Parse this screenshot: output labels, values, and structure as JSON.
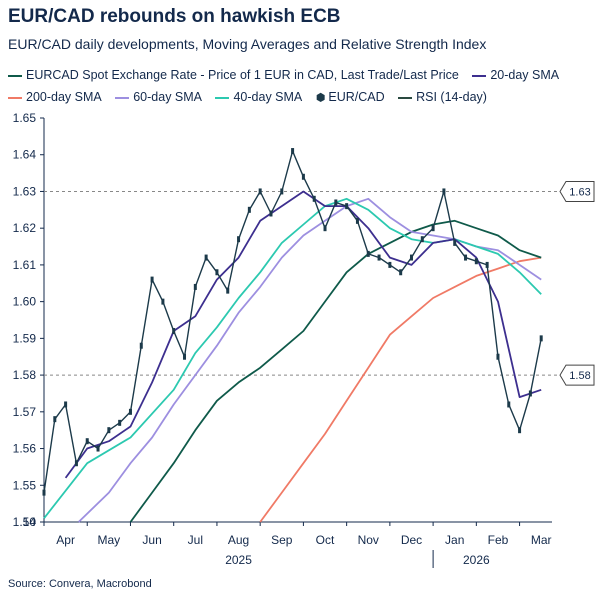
{
  "chart_data": {
    "type": "line",
    "title": "EUR/CAD rebounds on hawkish ECB",
    "subtitle": "EUR/CAD daily developments, Moving Averages and Relative Strength Index",
    "source": "Source: Convera, Macrobond",
    "ylim": [
      1.54,
      1.65
    ],
    "yticks": [
      "1.65",
      "1.64",
      "1.63",
      "1.62",
      "1.61",
      "1.60",
      "1.59",
      "1.58",
      "1.57",
      "1.56",
      "1.55",
      "1.54"
    ],
    "rsi_tick": "10",
    "months": [
      "Apr",
      "May",
      "Jun",
      "Jul",
      "Aug",
      "Sep",
      "Oct",
      "Nov",
      "Dec",
      "Jan",
      "Feb",
      "Mar"
    ],
    "years": [
      "2025",
      "2026"
    ],
    "reference_lines": [
      {
        "value": 1.63,
        "label": "1.63"
      },
      {
        "value": 1.58,
        "label": "1.58"
      }
    ],
    "legend": [
      {
        "name": "EURCAD Spot Exchange Rate - Price of 1 EUR in CAD, Last Trade/Last Price",
        "color": "#0f5a4a",
        "kind": "line"
      },
      {
        "name": "20-day SMA",
        "color": "#3d2f8f",
        "kind": "line"
      },
      {
        "name": "200-day SMA",
        "color": "#f07a66",
        "kind": "line"
      },
      {
        "name": "60-day SMA",
        "color": "#9d8fe0",
        "kind": "line"
      },
      {
        "name": "40-day SMA",
        "color": "#2cc9b0",
        "kind": "line"
      },
      {
        "name": "EUR/CAD",
        "color": "#1c3a4a",
        "kind": "candle"
      },
      {
        "name": "RSI (14-day)",
        "color": "#2a4a40",
        "kind": "line"
      }
    ],
    "series": [
      {
        "name": "EUR/CAD",
        "color": "#1c3a4a",
        "x": [
          0,
          0.25,
          0.5,
          0.75,
          1,
          1.25,
          1.5,
          1.75,
          2,
          2.25,
          2.5,
          2.75,
          3,
          3.25,
          3.5,
          3.75,
          4,
          4.25,
          4.5,
          4.75,
          5,
          5.25,
          5.5,
          5.75,
          6,
          6.25,
          6.5,
          6.75,
          7,
          7.25,
          7.5,
          7.75,
          8,
          8.25,
          8.5,
          8.75,
          9,
          9.25,
          9.5,
          9.75,
          10,
          10.25,
          10.5,
          10.75,
          11,
          11.25,
          11.5
        ],
        "values": [
          1.548,
          1.568,
          1.572,
          1.556,
          1.562,
          1.56,
          1.565,
          1.567,
          1.57,
          1.588,
          1.606,
          1.6,
          1.592,
          1.585,
          1.604,
          1.612,
          1.608,
          1.603,
          1.617,
          1.625,
          1.63,
          1.624,
          1.63,
          1.641,
          1.634,
          1.628,
          1.62,
          1.627,
          1.626,
          1.622,
          1.613,
          1.612,
          1.61,
          1.608,
          1.612,
          1.617,
          1.62,
          1.63,
          1.616,
          1.612,
          1.611,
          1.61,
          1.585,
          1.572,
          1.565,
          1.575,
          1.59
        ]
      },
      {
        "name": "20-day SMA",
        "color": "#3d2f8f",
        "x": [
          0.5,
          1,
          1.5,
          2,
          2.5,
          3,
          3.5,
          4,
          4.5,
          5,
          5.5,
          6,
          6.5,
          7,
          7.5,
          8,
          8.5,
          9,
          9.5,
          10,
          10.5,
          11,
          11.5
        ],
        "values": [
          1.552,
          1.56,
          1.562,
          1.566,
          1.578,
          1.592,
          1.596,
          1.606,
          1.612,
          1.622,
          1.626,
          1.63,
          1.626,
          1.626,
          1.62,
          1.612,
          1.61,
          1.616,
          1.617,
          1.612,
          1.6,
          1.574,
          1.576
        ]
      },
      {
        "name": "40-day SMA",
        "color": "#2cc9b0",
        "x": [
          0,
          1,
          2,
          3,
          3.5,
          4,
          4.5,
          5,
          5.5,
          6,
          6.5,
          7,
          7.5,
          8,
          8.5,
          9,
          9.5,
          10,
          10.5,
          11,
          11.5
        ],
        "values": [
          1.541,
          1.556,
          1.563,
          1.576,
          1.586,
          1.593,
          1.601,
          1.608,
          1.616,
          1.621,
          1.626,
          1.628,
          1.625,
          1.62,
          1.617,
          1.616,
          1.617,
          1.615,
          1.613,
          1.608,
          1.602
        ]
      },
      {
        "name": "60-day SMA",
        "color": "#9d8fe0",
        "x": [
          0.8,
          1.5,
          2,
          2.5,
          3,
          3.5,
          4,
          4.5,
          5,
          5.5,
          6,
          6.5,
          7,
          7.5,
          8,
          8.5,
          9,
          9.5,
          10,
          10.5,
          11,
          11.5
        ],
        "values": [
          1.54,
          1.548,
          1.556,
          1.563,
          1.572,
          1.58,
          1.588,
          1.597,
          1.604,
          1.612,
          1.618,
          1.622,
          1.626,
          1.628,
          1.623,
          1.619,
          1.618,
          1.617,
          1.615,
          1.614,
          1.61,
          1.606
        ]
      },
      {
        "name": "EURCAD Spot Exchange Rate - Price of 1 EUR in CAD, Last Trade/Last Price",
        "color": "#0f5a4a",
        "x": [
          2,
          2.5,
          3,
          3.5,
          4,
          4.5,
          5,
          5.5,
          6,
          6.5,
          7,
          7.5,
          8,
          8.5,
          9,
          9.5,
          10,
          10.5,
          11,
          11.5
        ],
        "values": [
          1.54,
          1.548,
          1.556,
          1.565,
          1.573,
          1.578,
          1.582,
          1.587,
          1.592,
          1.6,
          1.608,
          1.613,
          1.616,
          1.619,
          1.621,
          1.622,
          1.62,
          1.618,
          1.614,
          1.612
        ]
      },
      {
        "name": "200-day SMA",
        "color": "#f07a66",
        "x": [
          5,
          5.5,
          6,
          6.5,
          7,
          7.5,
          8,
          8.5,
          9,
          9.5,
          10,
          10.5,
          11,
          11.5
        ],
        "values": [
          1.54,
          1.548,
          1.556,
          1.564,
          1.573,
          1.582,
          1.591,
          1.596,
          1.601,
          1.604,
          1.607,
          1.609,
          1.611,
          1.612
        ]
      }
    ]
  }
}
